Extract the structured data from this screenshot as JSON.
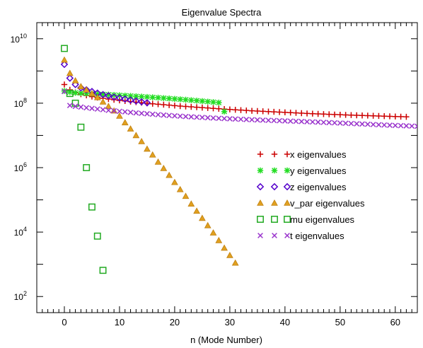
{
  "chart_data": {
    "type": "scatter",
    "title": "Eigenvalue Spectra",
    "xlabel": "n (Mode Number)",
    "ylabel": "",
    "xlim": [
      -5,
      64
    ],
    "ylim_log10": [
      1.5,
      10.5
    ],
    "y_scale": "log",
    "grid": false,
    "legend_position": "center-right",
    "x_ticks": [
      0,
      10,
      20,
      30,
      40,
      50,
      60
    ],
    "x_tick_labels": [
      "0",
      "10",
      "20",
      "30",
      "40",
      "50",
      "60"
    ],
    "y_ticks": [
      100,
      10000,
      1000000,
      100000000,
      10000000000
    ],
    "y_tick_labels": [
      {
        "base": "10",
        "exp": "2"
      },
      {
        "base": "10",
        "exp": "4"
      },
      {
        "base": "10",
        "exp": "6"
      },
      {
        "base": "10",
        "exp": "8"
      },
      {
        "base": "10",
        "exp": "10"
      }
    ],
    "series": [
      {
        "name": "x eigenvalues",
        "marker": "plus",
        "color": "#cc0000",
        "x": [
          0,
          1,
          2,
          3,
          4,
          5,
          6,
          7,
          8,
          9,
          10,
          11,
          12,
          13,
          14,
          15,
          16,
          17,
          18,
          19,
          20,
          21,
          22,
          23,
          24,
          25,
          26,
          27,
          28,
          29,
          30,
          31,
          32,
          33,
          34,
          35,
          36,
          37,
          38,
          39,
          40,
          41,
          42,
          43,
          44,
          45,
          46,
          47,
          48,
          49,
          50,
          51,
          52,
          53,
          54,
          55,
          56,
          57,
          58,
          59,
          60,
          61,
          62
        ],
        "y": [
          380000000,
          260000000,
          215000000,
          190000000,
          175000000,
          160000000,
          150000000,
          142000000,
          135000000,
          128000000,
          122000000,
          117000000,
          112000000,
          108000000,
          104000000,
          100000000,
          96000000,
          93000000,
          90000000,
          87000000,
          84000000,
          81000000,
          79000000,
          77000000,
          75000000,
          73000000,
          71000000,
          69000000,
          67000000,
          65500000,
          64000000,
          62500000,
          61000000,
          59500000,
          58000000,
          57000000,
          56000000,
          55000000,
          54000000,
          53000000,
          52000000,
          51000000,
          50000000,
          49000000,
          48000000,
          47300000,
          46600000,
          45900000,
          45200000,
          44500000,
          43900000,
          43300000,
          42700000,
          42100000,
          41600000,
          41100000,
          40600000,
          40100000,
          39600000,
          39100000,
          38600000,
          38200000,
          37800000
        ]
      },
      {
        "name": "y eigenvalues",
        "marker": "star",
        "color": "#22dd22",
        "x": [
          0,
          1,
          2,
          3,
          4,
          5,
          6,
          7,
          8,
          9,
          10,
          11,
          12,
          13,
          14,
          15,
          16,
          17,
          18,
          19,
          20,
          21,
          22,
          23,
          24,
          25,
          26,
          27,
          28,
          29
        ],
        "y": [
          240000000,
          220000000,
          210000000,
          205000000,
          200000000,
          196000000,
          192000000,
          188000000,
          184000000,
          180000000,
          176000000,
          172000000,
          168000000,
          164000000,
          160000000,
          156000000,
          152000000,
          148000000,
          144000000,
          140000000,
          136000000,
          132000000,
          128000000,
          124000000,
          120000000,
          116000000,
          112000000,
          108000000,
          104000000,
          55000000
        ]
      },
      {
        "name": "z eigenvalues",
        "marker": "diamond",
        "color": "#5500cc",
        "x": [
          0,
          1,
          2,
          3,
          4,
          5,
          6,
          7,
          8,
          9,
          10,
          11,
          12,
          13,
          14,
          15
        ],
        "y": [
          1600000000,
          600000000,
          380000000,
          300000000,
          260000000,
          230000000,
          205000000,
          185000000,
          170000000,
          155000000,
          145000000,
          135000000,
          125000000,
          117000000,
          110000000,
          103000000
        ]
      },
      {
        "name": "v_par eigenvalues",
        "marker": "triangle",
        "color": "#e0a020",
        "x": [
          0,
          1,
          2,
          3,
          4,
          5,
          6,
          7,
          8,
          9,
          10,
          11,
          12,
          13,
          14,
          15,
          16,
          17,
          18,
          19,
          20,
          21,
          22,
          23,
          24,
          25,
          26,
          27,
          28,
          29,
          30,
          31
        ],
        "y": [
          2200000000,
          850000000,
          500000000,
          330000000,
          260000000,
          200000000,
          150000000,
          110000000,
          80000000,
          58000000,
          40000000,
          25000000,
          16000000,
          10000000,
          6500000,
          3800000,
          2500000,
          1500000,
          950000,
          580000,
          350000,
          210000,
          130000,
          75000,
          45000,
          27000,
          16000,
          9500,
          5500,
          3200,
          1900,
          1100
        ]
      },
      {
        "name": "mu eigenvalues",
        "marker": "square",
        "color": "#22aa22",
        "x": [
          0,
          1,
          2,
          3,
          4,
          5,
          6,
          7
        ],
        "y": [
          5000000000,
          200000000,
          100000000,
          18000000,
          1000000,
          60000,
          7500,
          650
        ]
      },
      {
        "name": "t eigenvalues",
        "marker": "cross",
        "color": "#9933cc",
        "x": [
          0,
          1,
          2,
          3,
          4,
          5,
          6,
          7,
          8,
          9,
          10,
          11,
          12,
          13,
          14,
          15,
          16,
          17,
          18,
          19,
          20,
          21,
          22,
          23,
          24,
          25,
          26,
          27,
          28,
          29,
          30,
          31,
          32,
          33,
          34,
          35,
          36,
          37,
          38,
          39,
          40,
          41,
          42,
          43,
          44,
          45,
          46,
          47,
          48,
          49,
          50,
          51,
          52,
          53,
          54,
          55,
          56,
          57,
          58,
          59,
          60,
          61,
          62,
          63,
          64
        ],
        "y": [
          230000000,
          85000000,
          80000000,
          76000000,
          72000000,
          69000000,
          66000000,
          63000000,
          60000000,
          58000000,
          56000000,
          54000000,
          52000000,
          50000000,
          48500000,
          47000000,
          45500000,
          44000000,
          42800000,
          41600000,
          40500000,
          39500000,
          38600000,
          37700000,
          36900000,
          36100000,
          35400000,
          34700000,
          34000000,
          33400000,
          32800000,
          32200000,
          31700000,
          31200000,
          30700000,
          30200000,
          29800000,
          29400000,
          29000000,
          28600000,
          28200000,
          27800000,
          27400000,
          27000000,
          26600000,
          26200000,
          25800000,
          25400000,
          25000000,
          24600000,
          24200000,
          23800000,
          23400000,
          23000000,
          22600000,
          22200000,
          21800000,
          21400000,
          21000000,
          20700000,
          20400000,
          20100000,
          19800000,
          19500000,
          19200000
        ]
      }
    ]
  }
}
